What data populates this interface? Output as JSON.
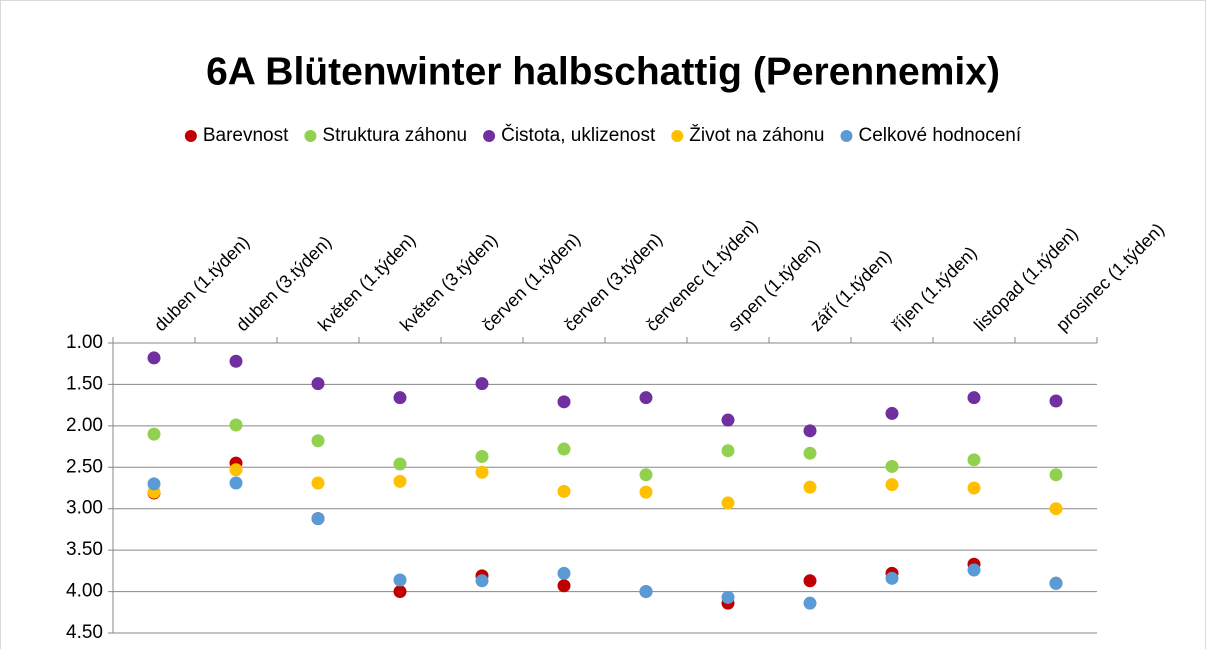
{
  "chart_data": {
    "type": "scatter",
    "title": "6A Blütenwinter halbschattig (Perennemix)",
    "categories": [
      "duben (1.týden)",
      "duben (3.týden)",
      "květen (1.týden)",
      "květen (3.týden)",
      "červen (1.týden)",
      "červen (3.týden)",
      "červenec (1.týden)",
      "srpen (1.týden)",
      "září (1.týden)",
      "říjen (1.týden)",
      "listopad (1.týden)",
      "prosinec (1.týden)"
    ],
    "series": [
      {
        "name": "Barevnost",
        "color": "#c00000",
        "values": [
          2.81,
          2.45,
          3.12,
          4.0,
          3.81,
          3.93,
          4.0,
          4.14,
          3.87,
          3.78,
          3.67,
          3.9
        ]
      },
      {
        "name": "Struktura záhonu",
        "color": "#92d050",
        "values": [
          2.1,
          1.99,
          2.18,
          2.46,
          2.37,
          2.28,
          2.59,
          2.3,
          2.33,
          2.49,
          2.41,
          2.59
        ]
      },
      {
        "name": "Čistota, uklizenost",
        "color": "#7030a0",
        "values": [
          1.18,
          1.22,
          1.49,
          1.66,
          1.49,
          1.71,
          1.66,
          1.93,
          2.06,
          1.85,
          1.66,
          1.7
        ]
      },
      {
        "name": "Život na záhonu",
        "color": "#ffc000",
        "values": [
          2.8,
          2.53,
          2.69,
          2.67,
          2.56,
          2.79,
          2.8,
          2.93,
          2.74,
          2.71,
          2.75,
          3.0
        ]
      },
      {
        "name": "Celkové hodnocení",
        "color": "#5b9bd5",
        "values": [
          2.7,
          2.69,
          3.12,
          3.86,
          3.87,
          3.78,
          4.0,
          4.07,
          4.14,
          3.84,
          3.74,
          3.9
        ]
      }
    ],
    "ylim": [
      1,
      4.5
    ],
    "yticks": [
      {
        "value": 1,
        "label": "1.00"
      },
      {
        "value": 1.5,
        "label": "1.50"
      },
      {
        "value": 2,
        "label": "2.00"
      },
      {
        "value": 2.5,
        "label": "2.50"
      },
      {
        "value": 3,
        "label": "3.00"
      },
      {
        "value": 3.5,
        "label": "3.50"
      },
      {
        "value": 4,
        "label": "4.00"
      },
      {
        "value": 4.5,
        "label": "4.50"
      }
    ],
    "y_reversed": true,
    "grid": true,
    "legend": "top"
  }
}
